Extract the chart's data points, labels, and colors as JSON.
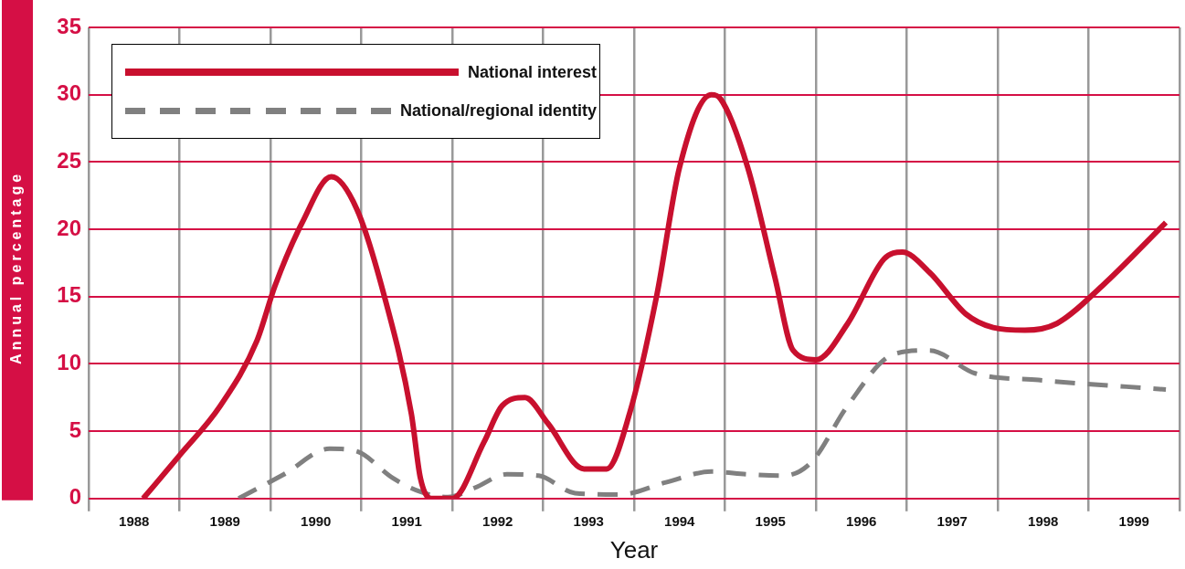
{
  "chart_data": {
    "type": "line",
    "xlabel": "Year",
    "ylabel": "Annual percentage",
    "xlim": [
      1987.5,
      1999.5
    ],
    "xticks": [
      {
        "value": 1987.5,
        "label": null
      },
      1988,
      {
        "value": 1988.5,
        "label": null
      },
      1989,
      {
        "value": 1989.5,
        "label": null
      },
      1990,
      {
        "value": 1990.5,
        "label": null
      },
      1991,
      {
        "value": 1991.5,
        "label": null
      },
      1992,
      {
        "value": 1992.5,
        "label": null
      },
      1993,
      {
        "value": 1993.5,
        "label": null
      },
      1994,
      {
        "value": 1994.5,
        "label": null
      },
      1995,
      {
        "value": 1995.5,
        "label": null
      },
      1996,
      {
        "value": 1996.5,
        "label": null
      },
      1997,
      {
        "value": 1997.5,
        "label": null
      },
      1998,
      {
        "value": 1998.5,
        "label": null
      },
      1999,
      {
        "value": 1999.5,
        "label": null
      }
    ],
    "ylim": [
      0,
      35
    ],
    "yticks": [
      0,
      5,
      10,
      15,
      20,
      25,
      30,
      35
    ],
    "grid": true,
    "legend": "top left",
    "series": [
      {
        "name": "National interest",
        "color": "#c8102e",
        "line_style": "solid",
        "x": [
          1988.1,
          1988.5,
          1988.95,
          1989.35,
          1989.55,
          1989.85,
          1990.17,
          1990.45,
          1990.75,
          1991.05,
          1991.15,
          1991.27,
          1991.5,
          1991.85,
          1992.05,
          1992.3,
          1992.55,
          1992.95,
          1993.2,
          1993.45,
          1993.75,
          1994.0,
          1994.35,
          1994.45,
          1994.75,
          1995.05,
          1995.25,
          1995.5,
          1995.85,
          1996.25,
          1996.45,
          1996.75,
          1997.15,
          1997.45,
          1997.8,
          1998.15,
          1998.65,
          1999.35
        ],
        "values": [
          0,
          3.2,
          6.9,
          11.7,
          15.8,
          20.5,
          23.9,
          21.5,
          15.1,
          6.3,
          1.5,
          0,
          0,
          4.2,
          6.9,
          7.5,
          5.6,
          2.2,
          2.2,
          6.3,
          15.1,
          24.6,
          30.0,
          29.7,
          24.6,
          16.4,
          11.0,
          10.3,
          13.0,
          17.8,
          18.3,
          16.8,
          13.7,
          12.7,
          12.5,
          13.0,
          15.8,
          20.5
        ]
      },
      {
        "name": "National/regional identity",
        "color": "#808080",
        "line_style": "dashed",
        "x": [
          1989.15,
          1989.65,
          1990.15,
          1990.45,
          1990.85,
          1991.15,
          1991.45,
          1991.75,
          1992.1,
          1992.45,
          1992.85,
          1993.35,
          1993.85,
          1994.35,
          1994.75,
          1995.15,
          1995.45,
          1995.85,
          1996.35,
          1996.75,
          1997.25,
          1997.95,
          1999.35
        ],
        "values": [
          0,
          1.8,
          3.7,
          3.5,
          1.5,
          0.5,
          0.1,
          0.8,
          1.8,
          1.7,
          0.4,
          0.3,
          1.2,
          2.0,
          1.8,
          1.7,
          2.7,
          6.9,
          10.7,
          11.0,
          9.3,
          8.8,
          8.1
        ]
      }
    ]
  }
}
